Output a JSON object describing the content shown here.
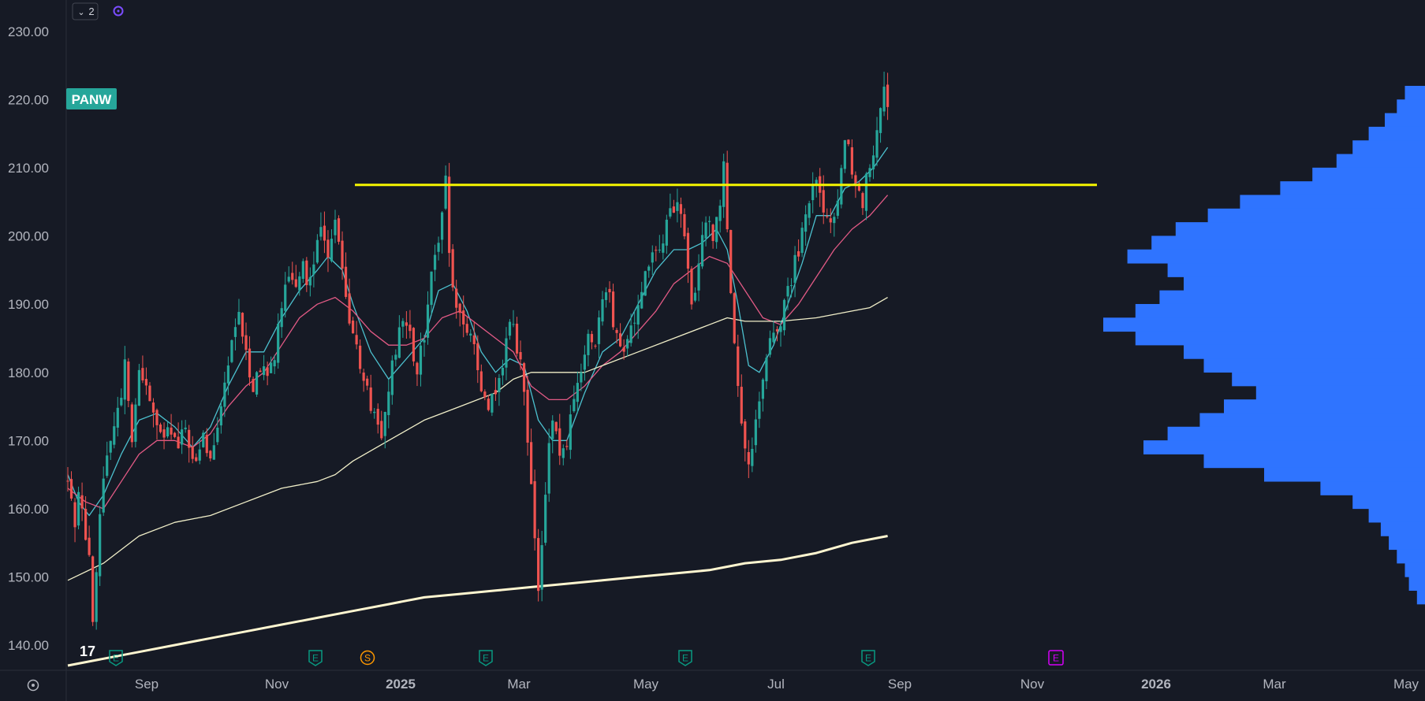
{
  "colors": {
    "background": "#161a25",
    "axis_text": "#b2b5be",
    "grid_border": "#2a2e39",
    "up_candle": "#26a69a",
    "down_candle": "#ef5350",
    "resistance": "#f5f500",
    "ma_fast": "#4cc1cf",
    "ma_mid": "#e25a85",
    "ma_slow": "#f1efc9",
    "ma_200": "#fff6d0",
    "volume_profile": "#2f74ff",
    "symbol_badge": "#26a69a",
    "earnings_marker": "#089981",
    "split_marker": "#ff9800",
    "future_earnings": "#d500f9"
  },
  "header": {
    "indicator_count": "2",
    "collapse_icon": "chevron-down-icon",
    "status_icon": "sync-icon"
  },
  "footer": {
    "logo_text": "17",
    "settings_icon": "gear-icon"
  },
  "chart_data": {
    "type": "candlestick",
    "symbol": "PANW",
    "y_axis": {
      "ticks": [
        "230.00",
        "220.00",
        "210.00",
        "200.00",
        "190.00",
        "180.00",
        "170.00",
        "160.00",
        "150.00",
        "140.00"
      ],
      "ylim": [
        138,
        234
      ]
    },
    "x_axis": {
      "ticks": [
        "Sep",
        "Nov",
        "2025",
        "Mar",
        "May",
        "Jul",
        "Sep",
        "Nov",
        "2026",
        "Mar",
        "May"
      ]
    },
    "resistance_level": 207.5,
    "event_markers": [
      "E",
      "E",
      "S",
      "E",
      "E",
      "E",
      "E"
    ],
    "price_path": [
      [
        0,
        164
      ],
      [
        2,
        158
      ],
      [
        3,
        162
      ],
      [
        5,
        156
      ],
      [
        6,
        152
      ],
      [
        7,
        143
      ],
      [
        8,
        150
      ],
      [
        9,
        159
      ],
      [
        11,
        168
      ],
      [
        13,
        173
      ],
      [
        15,
        176
      ],
      [
        16,
        183
      ],
      [
        17,
        175
      ],
      [
        18,
        171
      ],
      [
        19,
        174
      ],
      [
        20,
        180
      ],
      [
        22,
        178
      ],
      [
        25,
        172
      ],
      [
        27,
        170
      ],
      [
        29,
        172
      ],
      [
        31,
        169
      ],
      [
        33,
        172
      ],
      [
        36,
        166
      ],
      [
        38,
        170
      ],
      [
        40,
        168
      ],
      [
        42,
        173
      ],
      [
        44,
        178
      ],
      [
        46,
        185
      ],
      [
        48,
        188
      ],
      [
        50,
        183
      ],
      [
        52,
        178
      ],
      [
        54,
        181
      ],
      [
        56,
        179
      ],
      [
        58,
        183
      ],
      [
        60,
        190
      ],
      [
        62,
        195
      ],
      [
        64,
        192
      ],
      [
        66,
        196
      ],
      [
        67,
        193
      ],
      [
        69,
        197
      ],
      [
        71,
        201
      ],
      [
        73,
        198
      ],
      [
        75,
        203
      ],
      [
        77,
        195
      ],
      [
        78,
        190
      ],
      [
        79,
        188
      ],
      [
        80,
        186
      ],
      [
        81,
        184
      ],
      [
        82,
        181
      ],
      [
        84,
        177
      ],
      [
        86,
        173
      ],
      [
        88,
        171
      ],
      [
        89,
        174
      ],
      [
        90,
        178
      ],
      [
        92,
        183
      ],
      [
        94,
        188
      ],
      [
        96,
        185
      ],
      [
        98,
        180
      ],
      [
        100,
        186
      ],
      [
        102,
        195
      ],
      [
        104,
        200
      ],
      [
        106,
        208
      ],
      [
        107,
        198
      ],
      [
        108,
        192
      ],
      [
        110,
        189
      ],
      [
        112,
        186
      ],
      [
        114,
        183
      ],
      [
        116,
        178
      ],
      [
        118,
        175
      ],
      [
        120,
        177
      ],
      [
        122,
        180
      ],
      [
        124,
        188
      ],
      [
        126,
        184
      ],
      [
        128,
        178
      ],
      [
        129,
        170
      ],
      [
        130,
        164
      ],
      [
        131,
        155
      ],
      [
        132,
        148
      ],
      [
        133,
        154
      ],
      [
        134,
        161
      ],
      [
        135,
        170
      ],
      [
        136,
        174
      ],
      [
        138,
        168
      ],
      [
        140,
        170
      ],
      [
        142,
        176
      ],
      [
        144,
        180
      ],
      [
        146,
        186
      ],
      [
        148,
        184
      ],
      [
        150,
        190
      ],
      [
        152,
        192
      ],
      [
        153,
        186
      ],
      [
        155,
        183
      ],
      [
        157,
        185
      ],
      [
        159,
        188
      ],
      [
        161,
        193
      ],
      [
        163,
        196
      ],
      [
        165,
        198
      ],
      [
        167,
        200
      ],
      [
        169,
        203
      ],
      [
        171,
        205
      ],
      [
        173,
        201
      ],
      [
        174,
        194
      ],
      [
        175,
        189
      ],
      [
        177,
        196
      ],
      [
        179,
        203
      ],
      [
        181,
        200
      ],
      [
        183,
        205
      ],
      [
        184,
        210
      ],
      [
        185,
        202
      ],
      [
        186,
        192
      ],
      [
        187,
        183
      ],
      [
        188,
        177
      ],
      [
        189,
        172
      ],
      [
        190,
        168
      ],
      [
        191,
        166
      ],
      [
        192,
        168
      ],
      [
        193,
        172
      ],
      [
        194,
        176
      ],
      [
        196,
        183
      ],
      [
        198,
        186
      ],
      [
        200,
        188
      ],
      [
        202,
        192
      ],
      [
        204,
        196
      ],
      [
        206,
        200
      ],
      [
        208,
        205
      ],
      [
        210,
        208
      ],
      [
        212,
        203
      ],
      [
        214,
        201
      ],
      [
        216,
        206
      ],
      [
        218,
        215
      ],
      [
        220,
        210
      ],
      [
        222,
        207
      ],
      [
        223,
        205
      ],
      [
        224,
        208
      ],
      [
        226,
        213
      ],
      [
        228,
        219
      ],
      [
        229,
        221
      ],
      [
        230,
        220
      ]
    ],
    "indicators": [
      {
        "type": "line",
        "color_key": "ma_fast",
        "points": [
          [
            0,
            165
          ],
          [
            3,
            161
          ],
          [
            6,
            159
          ],
          [
            10,
            162
          ],
          [
            15,
            168
          ],
          [
            20,
            173
          ],
          [
            25,
            174
          ],
          [
            30,
            172
          ],
          [
            35,
            169
          ],
          [
            40,
            172
          ],
          [
            45,
            178
          ],
          [
            50,
            183
          ],
          [
            55,
            183
          ],
          [
            60,
            188
          ],
          [
            65,
            192
          ],
          [
            70,
            195
          ],
          [
            73,
            197
          ],
          [
            77,
            195
          ],
          [
            80,
            190
          ],
          [
            85,
            183
          ],
          [
            90,
            179
          ],
          [
            95,
            182
          ],
          [
            100,
            185
          ],
          [
            104,
            192
          ],
          [
            108,
            193
          ],
          [
            112,
            189
          ],
          [
            116,
            183
          ],
          [
            120,
            180
          ],
          [
            124,
            182
          ],
          [
            128,
            181
          ],
          [
            132,
            173
          ],
          [
            136,
            170
          ],
          [
            140,
            170
          ],
          [
            145,
            177
          ],
          [
            150,
            183
          ],
          [
            155,
            185
          ],
          [
            160,
            190
          ],
          [
            165,
            195
          ],
          [
            170,
            198
          ],
          [
            174,
            198
          ],
          [
            178,
            199
          ],
          [
            182,
            201
          ],
          [
            185,
            198
          ],
          [
            188,
            190
          ],
          [
            191,
            181
          ],
          [
            194,
            180
          ],
          [
            198,
            184
          ],
          [
            202,
            190
          ],
          [
            206,
            196
          ],
          [
            210,
            203
          ],
          [
            214,
            203
          ],
          [
            218,
            207
          ],
          [
            222,
            208
          ],
          [
            226,
            210
          ],
          [
            230,
            213
          ]
        ]
      },
      {
        "type": "line",
        "color_key": "ma_mid",
        "points": [
          [
            0,
            163
          ],
          [
            5,
            161
          ],
          [
            10,
            160
          ],
          [
            15,
            164
          ],
          [
            20,
            168
          ],
          [
            25,
            170
          ],
          [
            30,
            170
          ],
          [
            35,
            169
          ],
          [
            40,
            171
          ],
          [
            45,
            175
          ],
          [
            50,
            178
          ],
          [
            55,
            180
          ],
          [
            60,
            184
          ],
          [
            65,
            188
          ],
          [
            70,
            190
          ],
          [
            75,
            191
          ],
          [
            80,
            189
          ],
          [
            85,
            186
          ],
          [
            90,
            184
          ],
          [
            95,
            184
          ],
          [
            100,
            185
          ],
          [
            105,
            188
          ],
          [
            110,
            189
          ],
          [
            115,
            187
          ],
          [
            120,
            185
          ],
          [
            125,
            183
          ],
          [
            130,
            178
          ],
          [
            135,
            176
          ],
          [
            140,
            176
          ],
          [
            145,
            178
          ],
          [
            150,
            181
          ],
          [
            155,
            183
          ],
          [
            160,
            186
          ],
          [
            165,
            189
          ],
          [
            170,
            193
          ],
          [
            175,
            195
          ],
          [
            180,
            197
          ],
          [
            185,
            196
          ],
          [
            190,
            192
          ],
          [
            195,
            188
          ],
          [
            200,
            187
          ],
          [
            205,
            190
          ],
          [
            210,
            194
          ],
          [
            215,
            198
          ],
          [
            220,
            201
          ],
          [
            225,
            203
          ],
          [
            230,
            206
          ]
        ]
      },
      {
        "type": "line",
        "color_key": "ma_slow",
        "points": [
          [
            0,
            149.5
          ],
          [
            10,
            152
          ],
          [
            20,
            156
          ],
          [
            30,
            158
          ],
          [
            40,
            159
          ],
          [
            50,
            161
          ],
          [
            60,
            163
          ],
          [
            70,
            164
          ],
          [
            75,
            165
          ],
          [
            80,
            167
          ],
          [
            90,
            170
          ],
          [
            100,
            173
          ],
          [
            110,
            175
          ],
          [
            120,
            177
          ],
          [
            125,
            179
          ],
          [
            130,
            180
          ],
          [
            140,
            180
          ],
          [
            145,
            180
          ],
          [
            150,
            181
          ],
          [
            160,
            183
          ],
          [
            170,
            185
          ],
          [
            180,
            187
          ],
          [
            185,
            188
          ],
          [
            190,
            187.5
          ],
          [
            200,
            187.5
          ],
          [
            210,
            188
          ],
          [
            220,
            189
          ],
          [
            225,
            189.5
          ],
          [
            230,
            191
          ]
        ]
      },
      {
        "type": "line",
        "color_key": "ma_200",
        "points": [
          [
            0,
            137
          ],
          [
            10,
            138
          ],
          [
            20,
            139
          ],
          [
            30,
            140
          ],
          [
            40,
            141
          ],
          [
            50,
            142
          ],
          [
            60,
            143
          ],
          [
            70,
            144
          ],
          [
            80,
            145
          ],
          [
            90,
            146
          ],
          [
            95,
            146.5
          ],
          [
            100,
            147
          ],
          [
            110,
            147.5
          ],
          [
            120,
            148
          ],
          [
            130,
            148.5
          ],
          [
            140,
            149
          ],
          [
            150,
            149.5
          ],
          [
            160,
            150
          ],
          [
            170,
            150.5
          ],
          [
            180,
            151
          ],
          [
            185,
            151.5
          ],
          [
            190,
            152
          ],
          [
            200,
            152.5
          ],
          [
            210,
            153.5
          ],
          [
            220,
            155
          ],
          [
            230,
            156
          ]
        ]
      }
    ],
    "volume_profile": [
      [
        221,
        0.05
      ],
      [
        219,
        0.07
      ],
      [
        217,
        0.1
      ],
      [
        215,
        0.14
      ],
      [
        213,
        0.18
      ],
      [
        211,
        0.22
      ],
      [
        209,
        0.28
      ],
      [
        207,
        0.36
      ],
      [
        205,
        0.46
      ],
      [
        203,
        0.54
      ],
      [
        201,
        0.62
      ],
      [
        199,
        0.68
      ],
      [
        197,
        0.74
      ],
      [
        195,
        0.64
      ],
      [
        193,
        0.6
      ],
      [
        191,
        0.66
      ],
      [
        189,
        0.72
      ],
      [
        187,
        0.8
      ],
      [
        185,
        0.72
      ],
      [
        183,
        0.6
      ],
      [
        181,
        0.55
      ],
      [
        179,
        0.48
      ],
      [
        177,
        0.42
      ],
      [
        175,
        0.5
      ],
      [
        173,
        0.56
      ],
      [
        171,
        0.64
      ],
      [
        169,
        0.7
      ],
      [
        167,
        0.55
      ],
      [
        165,
        0.4
      ],
      [
        163,
        0.26
      ],
      [
        161,
        0.18
      ],
      [
        159,
        0.14
      ],
      [
        157,
        0.11
      ],
      [
        155,
        0.09
      ],
      [
        153,
        0.07
      ],
      [
        151,
        0.05
      ],
      [
        149,
        0.04
      ],
      [
        147,
        0.02
      ]
    ]
  }
}
